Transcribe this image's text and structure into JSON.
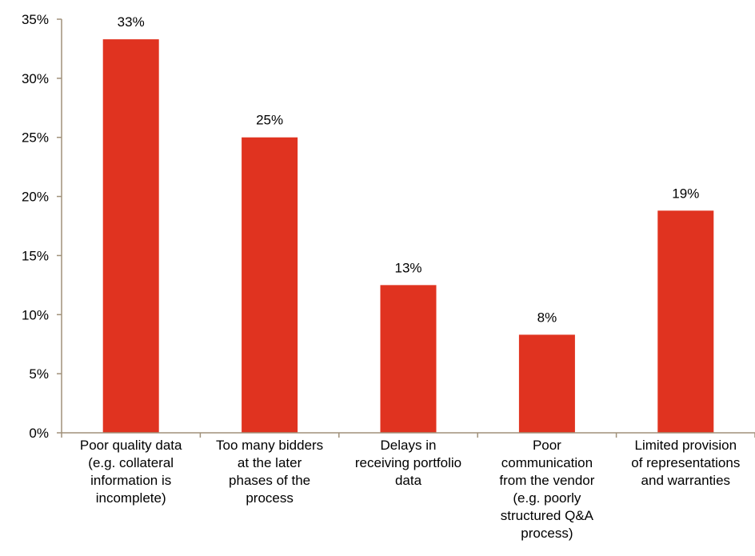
{
  "chart_data": {
    "type": "bar",
    "categories": [
      "Poor quality data (e.g. collateral information is incomplete)",
      "Too many bidders at the later phases of the process",
      "Delays in receiving portfolio data",
      "Poor communication from the vendor (e.g. poorly structured Q&A process)",
      "Limited provision of representations and warranties"
    ],
    "category_lines": [
      [
        "Poor quality data",
        "(e.g. collateral",
        "information is",
        "incomplete)"
      ],
      [
        "Too many bidders",
        "at the later",
        "phases of the",
        "process"
      ],
      [
        "Delays in",
        "receiving portfolio",
        "data"
      ],
      [
        "Poor",
        "communication",
        "from the vendor",
        "(e.g. poorly",
        "structured Q&A",
        "process)"
      ],
      [
        "Limited provision",
        "of representations",
        "and warranties"
      ]
    ],
    "values": [
      33.3,
      25.0,
      12.5,
      8.3,
      18.8
    ],
    "data_labels": [
      "33%",
      "25%",
      "13%",
      "8%",
      "19%"
    ],
    "yticks": [
      0,
      5,
      10,
      15,
      20,
      25,
      30,
      35
    ],
    "ytick_labels": [
      "0%",
      "5%",
      "10%",
      "15%",
      "20%",
      "25%",
      "30%",
      "35%"
    ],
    "ylim": [
      0,
      35
    ],
    "title": "",
    "xlabel": "",
    "ylabel": "",
    "grid": false,
    "legend": "none",
    "bar_color": "#E03320",
    "axis_color": "#A0917A"
  }
}
